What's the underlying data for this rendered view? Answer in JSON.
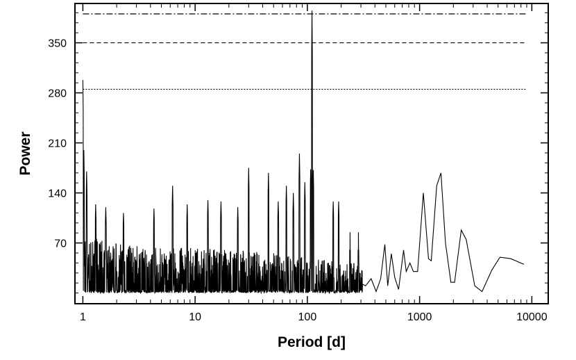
{
  "chart_data": {
    "type": "line",
    "xlabel": "Period [d]",
    "ylabel": "Power",
    "x_scale": "log",
    "xlim": [
      0.85,
      14000
    ],
    "ylim": [
      -15,
      405
    ],
    "x_ticks": [
      1,
      10,
      100,
      1000,
      10000
    ],
    "x_tick_labels": [
      "1",
      "10",
      "100",
      "1000",
      "10000"
    ],
    "y_ticks": [
      70,
      140,
      210,
      280,
      350
    ],
    "y_tick_labels": [
      "70",
      "140",
      "210",
      "280",
      "350"
    ],
    "grid": false,
    "legend": "none",
    "reference_lines": [
      {
        "style": "dotted",
        "y": 285
      },
      {
        "style": "dashed",
        "y": 350
      },
      {
        "style": "dash-dot",
        "y": 415
      }
    ],
    "peaks": [
      {
        "x": 1.0,
        "y": 298
      },
      {
        "x": 1.02,
        "y": 200
      },
      {
        "x": 1.08,
        "y": 170
      },
      {
        "x": 1.3,
        "y": 124
      },
      {
        "x": 1.6,
        "y": 120
      },
      {
        "x": 2.3,
        "y": 112
      },
      {
        "x": 4.3,
        "y": 118
      },
      {
        "x": 6.3,
        "y": 150
      },
      {
        "x": 8.5,
        "y": 124
      },
      {
        "x": 13,
        "y": 130
      },
      {
        "x": 17,
        "y": 128
      },
      {
        "x": 24,
        "y": 120
      },
      {
        "x": 30,
        "y": 175
      },
      {
        "x": 45,
        "y": 168
      },
      {
        "x": 55,
        "y": 128
      },
      {
        "x": 65,
        "y": 150
      },
      {
        "x": 75,
        "y": 140
      },
      {
        "x": 85,
        "y": 195
      },
      {
        "x": 95,
        "y": 155
      },
      {
        "x": 107,
        "y": 173
      },
      {
        "x": 110,
        "y": 395
      },
      {
        "x": 113,
        "y": 172
      },
      {
        "x": 170,
        "y": 128
      },
      {
        "x": 190,
        "y": 128
      },
      {
        "x": 240,
        "y": 85
      },
      {
        "x": 285,
        "y": 85
      }
    ],
    "tail": [
      {
        "x": 330,
        "y": 10
      },
      {
        "x": 370,
        "y": 20
      },
      {
        "x": 410,
        "y": 2
      },
      {
        "x": 450,
        "y": 20
      },
      {
        "x": 490,
        "y": 68
      },
      {
        "x": 520,
        "y": 10
      },
      {
        "x": 560,
        "y": 55
      },
      {
        "x": 600,
        "y": 22
      },
      {
        "x": 650,
        "y": 5
      },
      {
        "x": 720,
        "y": 60
      },
      {
        "x": 760,
        "y": 30
      },
      {
        "x": 820,
        "y": 42
      },
      {
        "x": 880,
        "y": 30
      },
      {
        "x": 960,
        "y": 30
      },
      {
        "x": 1080,
        "y": 140
      },
      {
        "x": 1200,
        "y": 48
      },
      {
        "x": 1270,
        "y": 45
      },
      {
        "x": 1420,
        "y": 150
      },
      {
        "x": 1550,
        "y": 168
      },
      {
        "x": 1700,
        "y": 70
      },
      {
        "x": 1900,
        "y": 15
      },
      {
        "x": 2050,
        "y": 15
      },
      {
        "x": 2350,
        "y": 88
      },
      {
        "x": 2600,
        "y": 75
      },
      {
        "x": 3100,
        "y": 10
      },
      {
        "x": 3600,
        "y": 2
      },
      {
        "x": 4400,
        "y": 32
      },
      {
        "x": 5200,
        "y": 50
      },
      {
        "x": 6500,
        "y": 48
      },
      {
        "x": 8500,
        "y": 40
      }
    ]
  }
}
